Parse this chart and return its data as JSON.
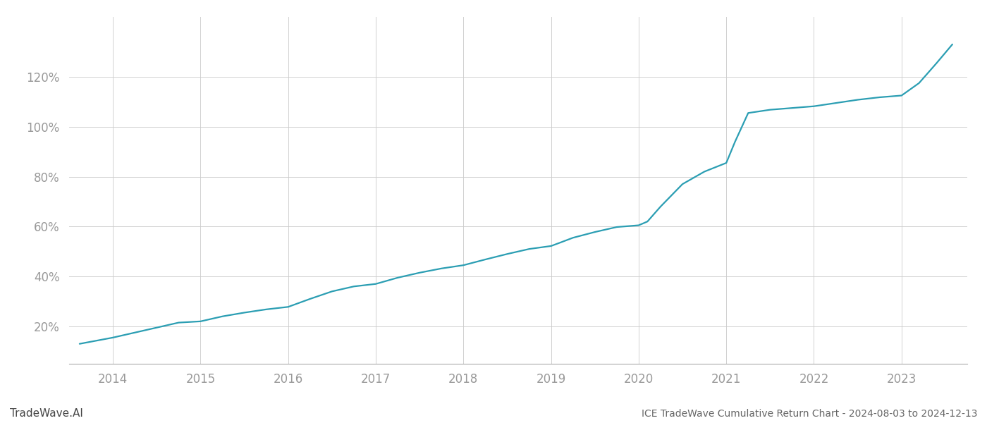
{
  "title": "ICE TradeWave Cumulative Return Chart - 2024-08-03 to 2024-12-13",
  "watermark": "TradeWave.AI",
  "line_color": "#2b9eb3",
  "background_color": "#ffffff",
  "grid_color": "#cccccc",
  "x_years": [
    2014,
    2015,
    2016,
    2017,
    2018,
    2019,
    2020,
    2021,
    2022,
    2023
  ],
  "x_tick_labels": [
    "2014",
    "2015",
    "2016",
    "2017",
    "2018",
    "2019",
    "2020",
    "2021",
    "2022",
    "2023"
  ],
  "y_ticks": [
    0.2,
    0.4,
    0.6,
    0.8,
    1.0,
    1.2
  ],
  "y_tick_labels": [
    "20%",
    "40%",
    "60%",
    "80%",
    "100%",
    "120%"
  ],
  "data_x": [
    2013.62,
    2014.0,
    2014.25,
    2014.5,
    2014.75,
    2015.0,
    2015.25,
    2015.5,
    2015.75,
    2016.0,
    2016.25,
    2016.5,
    2016.75,
    2017.0,
    2017.25,
    2017.5,
    2017.75,
    2018.0,
    2018.25,
    2018.5,
    2018.75,
    2019.0,
    2019.1,
    2019.25,
    2019.5,
    2019.75,
    2020.0,
    2020.1,
    2020.25,
    2020.5,
    2020.75,
    2021.0,
    2021.1,
    2021.25,
    2021.5,
    2021.75,
    2022.0,
    2022.25,
    2022.5,
    2022.75,
    2023.0,
    2023.2,
    2023.4,
    2023.58
  ],
  "data_y": [
    0.13,
    0.155,
    0.175,
    0.195,
    0.215,
    0.22,
    0.24,
    0.255,
    0.268,
    0.278,
    0.31,
    0.34,
    0.36,
    0.37,
    0.395,
    0.415,
    0.432,
    0.445,
    0.468,
    0.49,
    0.51,
    0.522,
    0.535,
    0.555,
    0.578,
    0.598,
    0.605,
    0.62,
    0.68,
    0.77,
    0.82,
    0.855,
    0.94,
    1.055,
    1.068,
    1.075,
    1.082,
    1.095,
    1.108,
    1.118,
    1.125,
    1.175,
    1.255,
    1.33
  ],
  "xlim": [
    2013.5,
    2023.75
  ],
  "ylim": [
    0.05,
    1.44
  ],
  "title_fontsize": 10,
  "watermark_fontsize": 11,
  "tick_label_color": "#999999",
  "title_color": "#666666",
  "watermark_color": "#444444",
  "line_width": 1.6
}
